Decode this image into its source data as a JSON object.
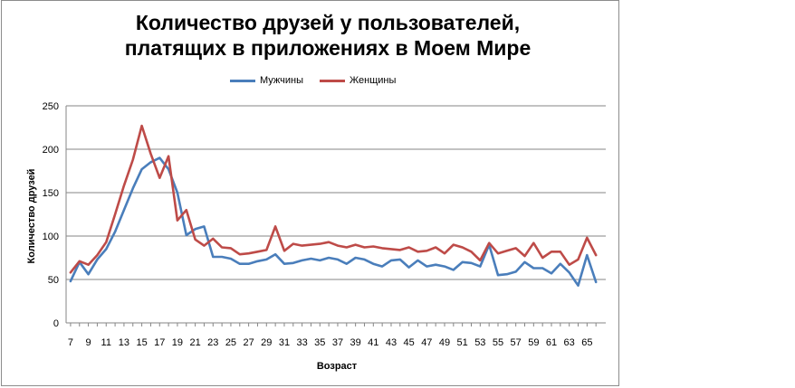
{
  "chart_data": {
    "type": "line",
    "title_lines": [
      "Количество друзей у пользователей,",
      "платящих в приложениях в Моем Мире"
    ],
    "xlabel": "Возраст",
    "ylabel": "Количество  друзей",
    "ylim": [
      0,
      250
    ],
    "yticks": [
      0,
      50,
      100,
      150,
      200,
      250
    ],
    "x": [
      7,
      8,
      9,
      10,
      11,
      12,
      13,
      14,
      15,
      16,
      17,
      18,
      19,
      20,
      21,
      22,
      23,
      24,
      25,
      26,
      27,
      28,
      29,
      30,
      31,
      32,
      33,
      34,
      35,
      36,
      37,
      38,
      39,
      40,
      41,
      42,
      43,
      44,
      45,
      46,
      47,
      48,
      49,
      50,
      51,
      52,
      53,
      54,
      55,
      56,
      57,
      58,
      59,
      60,
      61,
      62,
      63,
      64,
      65,
      66
    ],
    "xtick_labels": [
      "7",
      "9",
      "11",
      "13",
      "15",
      "17",
      "19",
      "21",
      "23",
      "25",
      "27",
      "29",
      "31",
      "33",
      "35",
      "37",
      "39",
      "41",
      "43",
      "45",
      "47",
      "49",
      "51",
      "53",
      "55",
      "57",
      "59",
      "61",
      "63",
      "65"
    ],
    "grid": true,
    "legend_position": "top",
    "series": [
      {
        "name": "Мужчины",
        "color": "#4a7ebb",
        "values": [
          48,
          70,
          56,
          73,
          85,
          105,
          130,
          155,
          177,
          185,
          190,
          177,
          150,
          101,
          108,
          111,
          76,
          76,
          74,
          68,
          68,
          71,
          73,
          79,
          68,
          69,
          72,
          74,
          72,
          75,
          73,
          68,
          75,
          73,
          68,
          65,
          72,
          73,
          64,
          72,
          65,
          67,
          65,
          61,
          70,
          69,
          65,
          90,
          55,
          56,
          59,
          70,
          63,
          63,
          57,
          68,
          58,
          43,
          78,
          47
        ]
      },
      {
        "name": "Женщины",
        "color": "#be4b48",
        "values": [
          58,
          71,
          67,
          78,
          93,
          125,
          158,
          188,
          227,
          195,
          167,
          192,
          118,
          130,
          96,
          89,
          97,
          87,
          86,
          79,
          80,
          82,
          84,
          111,
          83,
          91,
          89,
          90,
          91,
          93,
          89,
          87,
          90,
          87,
          88,
          86,
          85,
          84,
          87,
          82,
          83,
          87,
          80,
          90,
          87,
          82,
          72,
          92,
          80,
          83,
          86,
          77,
          92,
          75,
          82,
          82,
          67,
          73,
          98,
          78
        ]
      }
    ]
  }
}
